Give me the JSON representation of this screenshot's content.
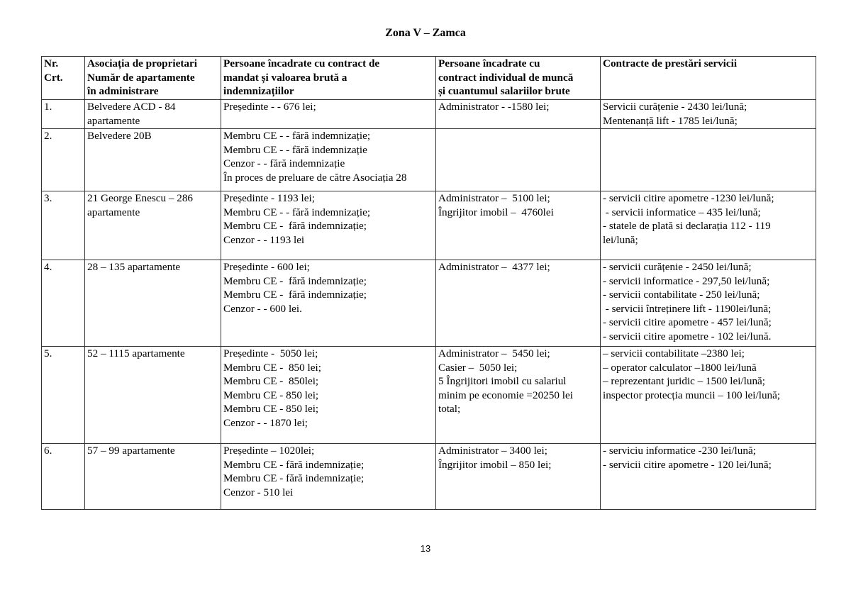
{
  "title": "Zona V – Zamca",
  "headers": [
    [
      "Nr.",
      "Crt."
    ],
    [
      "Asociația de proprietari",
      "Număr de apartamente",
      "în administrare"
    ],
    [
      "Persoane încadrate cu contract de",
      "mandat și valoarea brută a",
      "indemnizațiilor"
    ],
    [
      "Persoane încadrate cu",
      "contract individual de muncă",
      "și cuantumul salariilor brute"
    ],
    [
      "Contracte de prestări servicii"
    ]
  ],
  "rows": [
    {
      "cells": [
        [
          "1."
        ],
        [
          "Belvedere ACD - 84",
          "apartamente"
        ],
        [
          "Președinte - - 676 lei;"
        ],
        [
          "Administrator - -1580 lei;"
        ],
        [
          "Servicii curățenie - 2430 lei/lună;",
          "Mentenanță lift - 1785 lei/lună;"
        ]
      ]
    },
    {
      "cells": [
        [
          "2."
        ],
        [
          "Belvedere 20B"
        ],
        [
          "Membru CE - - fără indemnizație;",
          "Membru CE - - fără indemnizație",
          "Cenzor - - fără indemnizație",
          "În proces de preluare de către Asociația 28"
        ],
        [],
        []
      ]
    },
    {
      "cells": [
        [
          "3."
        ],
        [
          "21 George Enescu – 286",
          "apartamente"
        ],
        [
          "Președinte - 1193 lei;",
          "Membru CE - - fără indemnizație;",
          "Membru CE -  fără indemnizație;",
          "Cenzor - - 1193 lei"
        ],
        [
          "Administrator –  5100 lei;",
          "Îngrijitor imobil –  4760lei"
        ],
        [
          "- servicii citire apometre -1230 lei/lună;",
          " - servicii informatice – 435 lei/lună;",
          "- statele de plată si declarația 112 - 119",
          "lei/lună;"
        ]
      ]
    },
    {
      "cells": [
        [
          "4."
        ],
        [
          "28 – 135 apartamente"
        ],
        [
          "Președinte - 600 lei;",
          "Membru CE -  fără indemnizație;",
          "Membru CE -  fără indemnizație;",
          "Cenzor - - 600 lei."
        ],
        [
          "Administrator –  4377 lei;"
        ],
        [
          "- servicii curățenie - 2450 lei/lună;",
          "- servicii informatice - 297,50 lei/lună;",
          "- servicii contabilitate - 250 lei/lună;",
          " - servicii întreținere lift - 1190lei/lună;",
          "- servicii citire apometre - 457 lei/lună;",
          "- servicii citire apometre - 102 lei/lună."
        ]
      ]
    },
    {
      "cells": [
        [
          "5."
        ],
        [
          "52 – 1115 apartamente"
        ],
        [
          "Președinte -  5050 lei;",
          "Membru CE -  850 lei;",
          "Membru CE -  850lei;",
          "Membru CE - 850 lei;",
          "Membru CE - 850 lei;",
          "Cenzor - - 1870 lei;"
        ],
        [
          "Administrator –  5450 lei;",
          "Casier –  5050 lei;",
          "5 Îngrijitori imobil cu salariul",
          "minim pe economie =20250 lei",
          "total;"
        ],
        [
          "– servicii contabilitate –2380 lei;",
          "– operator calculator –1800 lei/lună",
          "– reprezentant juridic – 1500 lei/lună;",
          "inspector protecția muncii – 100 lei/lună;"
        ]
      ]
    },
    {
      "cells": [
        [
          "6."
        ],
        [
          "57 – 99 apartamente"
        ],
        [
          "Președinte – 1020lei;",
          "Membru CE - fără indemnizație;",
          "Membru CE - fără indemnizație;",
          "Cenzor - 510 lei"
        ],
        [
          "Administrator – 3400 lei;",
          "Îngrijitor imobil – 850 lei;"
        ],
        [
          "- serviciu informatice -230 lei/lună;",
          "- servicii citire apometre - 120 lei/lună;"
        ]
      ]
    }
  ],
  "page_number": "13"
}
